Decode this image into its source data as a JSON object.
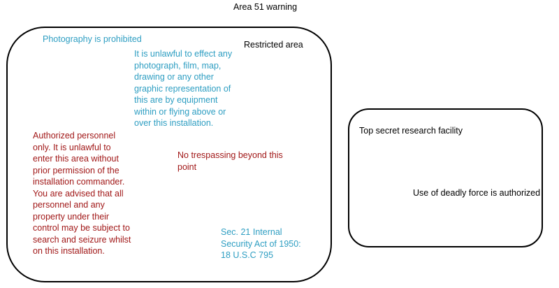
{
  "title": "Area 51 warning",
  "colors": {
    "blue_text": "#2e9ec2",
    "red_text": "#a11818",
    "black_text": "#000000",
    "border": "#000000"
  },
  "left_box": {
    "photography_prohibited": "Photography is prohibited",
    "restricted_area": "Restricted area",
    "unlawful_photograph": "It is unlawful to effect any\nphotograph, film, map,\ndrawing or any other\ngraphic representation of\nthis are by equipment\nwithin or flying above or\nover this installation.",
    "authorized_personnel": "Authorized personnel\nonly. It is unlawful to\nenter this area without\nprior permission of the\ninstallation commander.\nYou are advised that all\npersonnel and any\nproperty under their\ncontrol may be subject to\nsearch and seizure whilst\non this installation.",
    "no_trespassing": "No trespassing beyond this\npoint",
    "sec_21": "Sec. 21 Internal\nSecurity Act of 1950:\n18 U.S.C 795"
  },
  "right_box": {
    "top_secret": "Top secret research facility",
    "deadly_force": "Use of deadly force is authorized"
  }
}
